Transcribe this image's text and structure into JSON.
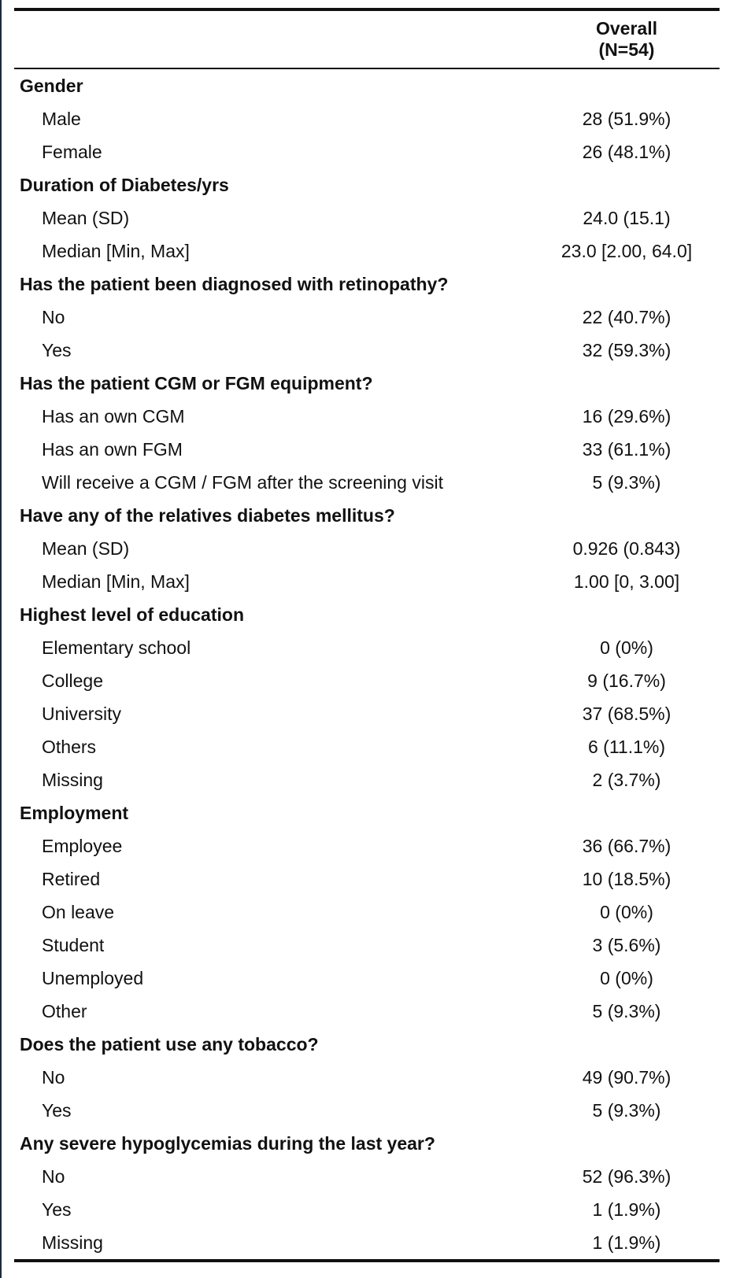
{
  "header": {
    "label_col": "",
    "overall_line1": "Overall",
    "overall_line2": "(N=54)"
  },
  "groups": [
    {
      "title": "Gender",
      "rows": [
        {
          "label": "Male",
          "value": "28 (51.9%)"
        },
        {
          "label": "Female",
          "value": "26 (48.1%)"
        }
      ]
    },
    {
      "title": "Duration of Diabetes/yrs",
      "rows": [
        {
          "label": "Mean (SD)",
          "value": "24.0 (15.1)"
        },
        {
          "label": "Median [Min, Max]",
          "value": "23.0 [2.00, 64.0]"
        }
      ]
    },
    {
      "title": "Has the patient been diagnosed with retinopathy?",
      "rows": [
        {
          "label": "No",
          "value": "22 (40.7%)"
        },
        {
          "label": "Yes",
          "value": "32 (59.3%)"
        }
      ]
    },
    {
      "title": "Has the patient CGM or FGM equipment?",
      "rows": [
        {
          "label": "Has an own CGM",
          "value": "16 (29.6%)"
        },
        {
          "label": "Has an own FGM",
          "value": "33 (61.1%)"
        },
        {
          "label": "Will receive a CGM / FGM after the screening visit",
          "value": "5 (9.3%)"
        }
      ]
    },
    {
      "title": "Have any of the relatives diabetes mellitus?",
      "rows": [
        {
          "label": "Mean (SD)",
          "value": "0.926 (0.843)"
        },
        {
          "label": "Median [Min, Max]",
          "value": "1.00 [0, 3.00]"
        }
      ]
    },
    {
      "title": "Highest level of education",
      "rows": [
        {
          "label": "Elementary school",
          "value": "0 (0%)"
        },
        {
          "label": "College",
          "value": "9 (16.7%)"
        },
        {
          "label": "University",
          "value": "37 (68.5%)"
        },
        {
          "label": "Others",
          "value": "6 (11.1%)"
        },
        {
          "label": "Missing",
          "value": "2 (3.7%)"
        }
      ]
    },
    {
      "title": "Employment",
      "rows": [
        {
          "label": "Employee",
          "value": "36 (66.7%)"
        },
        {
          "label": "Retired",
          "value": "10 (18.5%)"
        },
        {
          "label": "On leave",
          "value": "0 (0%)"
        },
        {
          "label": "Student",
          "value": "3 (5.6%)"
        },
        {
          "label": "Unemployed",
          "value": "0 (0%)"
        },
        {
          "label": "Other",
          "value": "5 (9.3%)"
        }
      ]
    },
    {
      "title": "Does the patient use any tobacco?",
      "rows": [
        {
          "label": "No",
          "value": "49 (90.7%)"
        },
        {
          "label": "Yes",
          "value": "5 (9.3%)"
        }
      ]
    },
    {
      "title": "Any severe hypoglycemias during the last year?",
      "rows": [
        {
          "label": "No",
          "value": "52 (96.3%)"
        },
        {
          "label": "Yes",
          "value": "1 (1.9%)"
        },
        {
          "label": "Missing",
          "value": "1 (1.9%)"
        }
      ]
    }
  ]
}
